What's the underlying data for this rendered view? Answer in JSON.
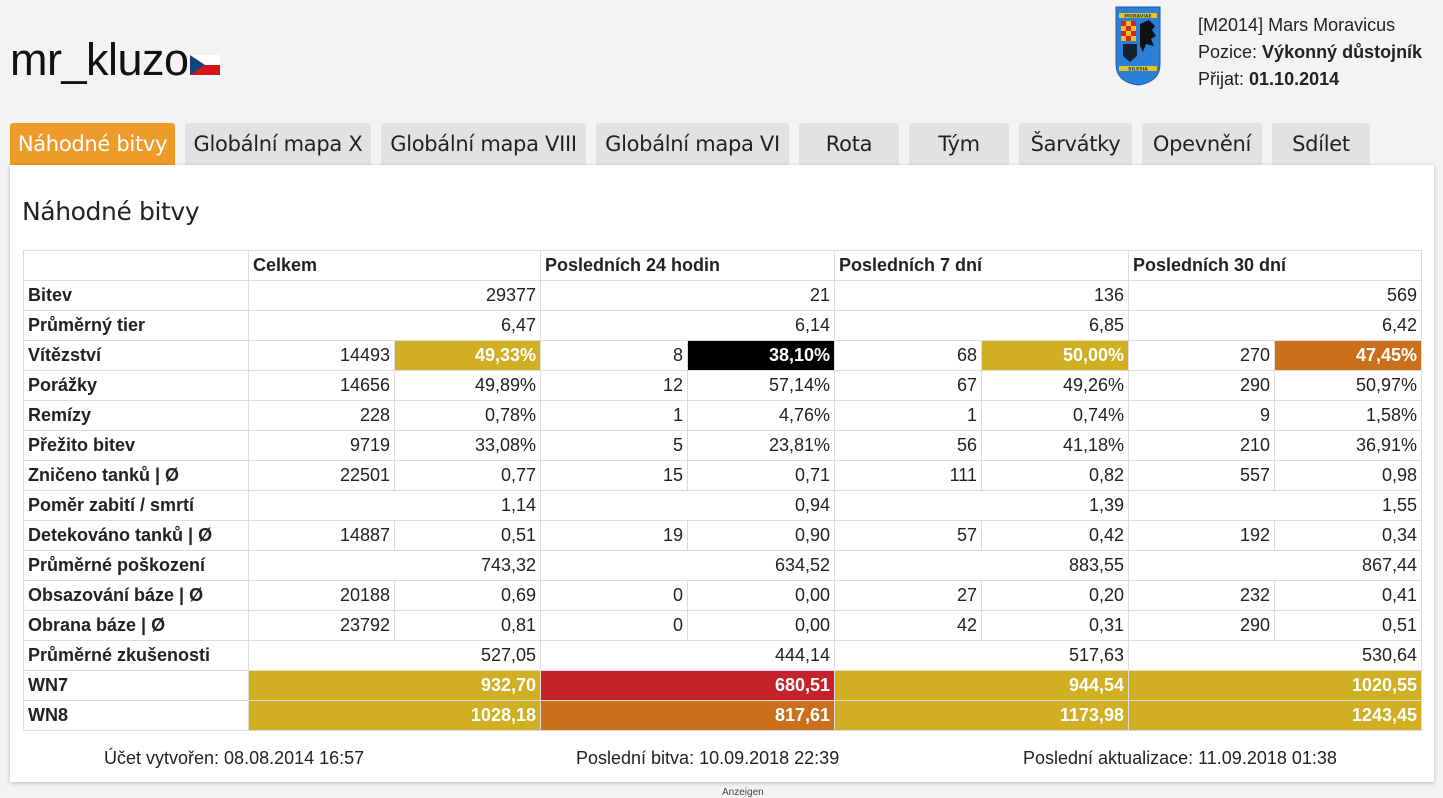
{
  "player": {
    "name": "mr_kluzo",
    "flag_icon": "czech-flag-icon"
  },
  "clan": {
    "logo_icon": "moravia-silesia-clan-logo",
    "logo_text_top": "MORAVIAE",
    "logo_text_bottom": "SILESIA",
    "tag": "M2014",
    "name": "Mars Moravicus",
    "position_label": "Pozice:",
    "position_value": "Výkonný důstojník",
    "joined_label": "Přijat:",
    "joined_value": "01.10.2014"
  },
  "tabs": [
    {
      "label": "Náhodné bitvy",
      "active": true
    },
    {
      "label": "Globální mapa X"
    },
    {
      "label": "Globální mapa VIII"
    },
    {
      "label": "Globální mapa VI"
    },
    {
      "label": "Rota"
    },
    {
      "label": "Tým"
    },
    {
      "label": "Šarvátky"
    },
    {
      "label": "Opevnění"
    },
    {
      "label": "Sdílet"
    }
  ],
  "section": {
    "title": "Náhodné bitvy"
  },
  "table": {
    "headers": [
      "",
      "Celkem",
      "Posledních 24 hodin",
      "Posledních 7 dní",
      "Posledních 30 dní"
    ],
    "rows": [
      {
        "label": "Bitev",
        "type": "single",
        "values": [
          "29377",
          "21",
          "136",
          "569"
        ]
      },
      {
        "label": "Průměrný tier",
        "type": "single",
        "values": [
          "6,47",
          "6,14",
          "6,85",
          "6,42"
        ]
      },
      {
        "label": "Vítězství",
        "type": "pair",
        "values": [
          [
            "14493",
            "49,33%"
          ],
          [
            "8",
            "38,10%"
          ],
          [
            "68",
            "50,00%"
          ],
          [
            "270",
            "47,45%"
          ]
        ],
        "colors": [
          "#d0af23",
          "#000000",
          "#d0af23",
          "#cc6f1c"
        ]
      },
      {
        "label": "Porážky",
        "type": "pair",
        "values": [
          [
            "14656",
            "49,89%"
          ],
          [
            "12",
            "57,14%"
          ],
          [
            "67",
            "49,26%"
          ],
          [
            "290",
            "50,97%"
          ]
        ]
      },
      {
        "label": "Remízy",
        "type": "pair",
        "values": [
          [
            "228",
            "0,78%"
          ],
          [
            "1",
            "4,76%"
          ],
          [
            "1",
            "0,74%"
          ],
          [
            "9",
            "1,58%"
          ]
        ]
      },
      {
        "label": "Přežito bitev",
        "type": "pair",
        "values": [
          [
            "9719",
            "33,08%"
          ],
          [
            "5",
            "23,81%"
          ],
          [
            "56",
            "41,18%"
          ],
          [
            "210",
            "36,91%"
          ]
        ]
      },
      {
        "label": "Zničeno tanků | Ø",
        "type": "pair",
        "values": [
          [
            "22501",
            "0,77"
          ],
          [
            "15",
            "0,71"
          ],
          [
            "111",
            "0,82"
          ],
          [
            "557",
            "0,98"
          ]
        ]
      },
      {
        "label": "Poměr zabití / smrtí",
        "type": "single",
        "values": [
          "1,14",
          "0,94",
          "1,39",
          "1,55"
        ]
      },
      {
        "label": "Detekováno tanků | Ø",
        "type": "pair",
        "values": [
          [
            "14887",
            "0,51"
          ],
          [
            "19",
            "0,90"
          ],
          [
            "57",
            "0,42"
          ],
          [
            "192",
            "0,34"
          ]
        ]
      },
      {
        "label": "Průměrné poškození",
        "type": "single",
        "values": [
          "743,32",
          "634,52",
          "883,55",
          "867,44"
        ]
      },
      {
        "label": "Obsazování báze | Ø",
        "type": "pair",
        "values": [
          [
            "20188",
            "0,69"
          ],
          [
            "0",
            "0,00"
          ],
          [
            "27",
            "0,20"
          ],
          [
            "232",
            "0,41"
          ]
        ]
      },
      {
        "label": "Obrana báze | Ø",
        "type": "pair",
        "values": [
          [
            "23792",
            "0,81"
          ],
          [
            "0",
            "0,00"
          ],
          [
            "42",
            "0,31"
          ],
          [
            "290",
            "0,51"
          ]
        ]
      },
      {
        "label": "Průměrné zkušenosti",
        "type": "single",
        "values": [
          "527,05",
          "444,14",
          "517,63",
          "530,64"
        ]
      },
      {
        "label": "WN7",
        "type": "rating",
        "values": [
          "932,70",
          "680,51",
          "944,54",
          "1020,55"
        ],
        "colors": [
          "#d0af23",
          "#c4232b",
          "#d0af23",
          "#d0af23"
        ]
      },
      {
        "label": "WN8",
        "type": "rating",
        "values": [
          "1028,18",
          "817,61",
          "1173,98",
          "1243,45"
        ],
        "colors": [
          "#d0af23",
          "#cc6f1c",
          "#d0af23",
          "#d0af23"
        ]
      }
    ]
  },
  "footer": {
    "created": "Účet vytvořen: 08.08.2014 16:57",
    "last_battle": "Poslední bitva: 10.09.2018 22:39",
    "last_update": "Poslední aktualizace: 11.09.2018 01:38"
  },
  "ads_label": "Anzeigen"
}
